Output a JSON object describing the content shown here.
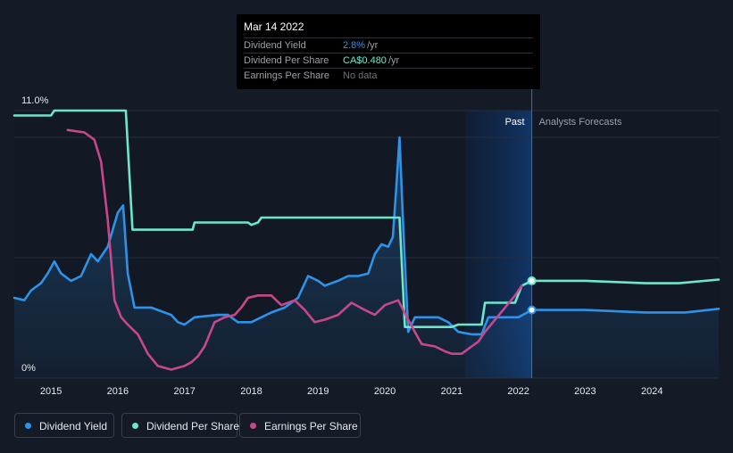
{
  "tooltip": {
    "date": "Mar 14 2022",
    "rows": [
      {
        "label": "Dividend Yield",
        "value": "2.8%",
        "unit": "/yr",
        "color": "#2e93e8"
      },
      {
        "label": "Dividend Per Share",
        "value": "CA$0.480",
        "unit": "/yr",
        "color": "#6ee6cc"
      },
      {
        "label": "Earnings Per Share",
        "value": "No data",
        "unit": "",
        "color": "#6b7079"
      }
    ]
  },
  "legend": [
    {
      "label": "Dividend Yield",
      "color": "#2e93e8"
    },
    {
      "label": "Dividend Per Share",
      "color": "#6ee6cc"
    },
    {
      "label": "Earnings Per Share",
      "color": "#c8478a"
    }
  ],
  "chart_data": {
    "type": "line",
    "y_axis_labels": [
      "11.0%",
      "0%"
    ],
    "ylim": [
      0,
      11.0
    ],
    "xlim": [
      2014.45,
      2025.0
    ],
    "x_ticks": [
      "2015",
      "2016",
      "2017",
      "2018",
      "2019",
      "2020",
      "2021",
      "2022",
      "2023",
      "2024"
    ],
    "region_labels": {
      "past": "Past",
      "forecast": "Analysts Forecasts"
    },
    "past_band": [
      2021.2,
      2022.2
    ],
    "today": 2022.2,
    "grid": true,
    "legend_position": "bottom",
    "series": [
      {
        "name": "Dividend Yield",
        "color": "#2e93e8",
        "fill": true,
        "points": [
          [
            2014.45,
            3.3
          ],
          [
            2014.6,
            3.2
          ],
          [
            2014.7,
            3.6
          ],
          [
            2014.85,
            3.9
          ],
          [
            2014.95,
            4.3
          ],
          [
            2015.05,
            4.8
          ],
          [
            2015.15,
            4.3
          ],
          [
            2015.3,
            4.0
          ],
          [
            2015.45,
            4.2
          ],
          [
            2015.6,
            5.1
          ],
          [
            2015.7,
            4.8
          ],
          [
            2015.85,
            5.4
          ],
          [
            2016.0,
            6.8
          ],
          [
            2016.08,
            7.1
          ],
          [
            2016.15,
            4.3
          ],
          [
            2016.25,
            2.9
          ],
          [
            2016.5,
            2.9
          ],
          [
            2016.6,
            2.8
          ],
          [
            2016.8,
            2.6
          ],
          [
            2016.9,
            2.3
          ],
          [
            2017.0,
            2.2
          ],
          [
            2017.15,
            2.5
          ],
          [
            2017.5,
            2.6
          ],
          [
            2017.65,
            2.6
          ],
          [
            2017.8,
            2.3
          ],
          [
            2018.0,
            2.3
          ],
          [
            2018.15,
            2.5
          ],
          [
            2018.3,
            2.7
          ],
          [
            2018.5,
            2.9
          ],
          [
            2018.7,
            3.3
          ],
          [
            2018.85,
            4.2
          ],
          [
            2019.0,
            4.0
          ],
          [
            2019.1,
            3.8
          ],
          [
            2019.3,
            4.0
          ],
          [
            2019.45,
            4.2
          ],
          [
            2019.6,
            4.2
          ],
          [
            2019.75,
            4.3
          ],
          [
            2019.85,
            5.1
          ],
          [
            2019.95,
            5.5
          ],
          [
            2020.05,
            5.4
          ],
          [
            2020.12,
            5.8
          ],
          [
            2020.17,
            7.8
          ],
          [
            2020.22,
            9.9
          ],
          [
            2020.27,
            6.5
          ],
          [
            2020.35,
            1.9
          ],
          [
            2020.45,
            2.5
          ],
          [
            2020.6,
            2.5
          ],
          [
            2020.8,
            2.5
          ],
          [
            2020.95,
            2.3
          ],
          [
            2021.1,
            1.9
          ],
          [
            2021.3,
            1.8
          ],
          [
            2021.45,
            1.8
          ],
          [
            2021.55,
            2.5
          ],
          [
            2021.8,
            2.5
          ],
          [
            2022.0,
            2.5
          ],
          [
            2022.2,
            2.8
          ],
          [
            2023.0,
            2.8
          ],
          [
            2023.9,
            2.7
          ],
          [
            2024.5,
            2.7
          ],
          [
            2025.0,
            2.85
          ]
        ]
      },
      {
        "name": "Dividend Per Share",
        "color": "#6ee6cc",
        "fill": false,
        "points": [
          [
            2014.45,
            10.8
          ],
          [
            2015.0,
            10.8
          ],
          [
            2015.05,
            11.0
          ],
          [
            2016.12,
            11.0
          ],
          [
            2016.22,
            6.1
          ],
          [
            2017.12,
            6.1
          ],
          [
            2017.15,
            6.4
          ],
          [
            2017.95,
            6.4
          ],
          [
            2018.0,
            6.3
          ],
          [
            2018.1,
            6.4
          ],
          [
            2018.15,
            6.6
          ],
          [
            2020.22,
            6.6
          ],
          [
            2020.3,
            2.1
          ],
          [
            2021.0,
            2.1
          ],
          [
            2021.1,
            2.2
          ],
          [
            2021.45,
            2.2
          ],
          [
            2021.5,
            3.1
          ],
          [
            2021.95,
            3.1
          ],
          [
            2022.05,
            3.8
          ],
          [
            2022.2,
            4.0
          ],
          [
            2023.0,
            4.0
          ],
          [
            2023.9,
            3.9
          ],
          [
            2024.4,
            3.9
          ],
          [
            2025.0,
            4.05
          ]
        ]
      },
      {
        "name": "Earnings Per Share",
        "color": "#c8478a",
        "fill": false,
        "points": [
          [
            2015.25,
            10.2
          ],
          [
            2015.5,
            10.1
          ],
          [
            2015.65,
            9.8
          ],
          [
            2015.75,
            8.9
          ],
          [
            2015.85,
            6.5
          ],
          [
            2015.95,
            3.2
          ],
          [
            2016.05,
            2.5
          ],
          [
            2016.15,
            2.2
          ],
          [
            2016.3,
            1.8
          ],
          [
            2016.45,
            1.0
          ],
          [
            2016.6,
            0.5
          ],
          [
            2016.8,
            0.35
          ],
          [
            2017.0,
            0.5
          ],
          [
            2017.1,
            0.65
          ],
          [
            2017.2,
            0.9
          ],
          [
            2017.3,
            1.3
          ],
          [
            2017.45,
            2.3
          ],
          [
            2017.6,
            2.5
          ],
          [
            2017.75,
            2.6
          ],
          [
            2017.85,
            2.9
          ],
          [
            2017.95,
            3.3
          ],
          [
            2018.1,
            3.4
          ],
          [
            2018.3,
            3.4
          ],
          [
            2018.45,
            3.0
          ],
          [
            2018.65,
            3.2
          ],
          [
            2018.8,
            2.8
          ],
          [
            2018.95,
            2.3
          ],
          [
            2019.1,
            2.4
          ],
          [
            2019.3,
            2.6
          ],
          [
            2019.5,
            3.1
          ],
          [
            2019.7,
            2.8
          ],
          [
            2019.85,
            2.6
          ],
          [
            2020.0,
            3.0
          ],
          [
            2020.2,
            3.2
          ],
          [
            2020.35,
            2.4
          ],
          [
            2020.45,
            1.9
          ],
          [
            2020.55,
            1.4
          ],
          [
            2020.75,
            1.3
          ],
          [
            2020.9,
            1.1
          ],
          [
            2021.0,
            1.0
          ],
          [
            2021.15,
            1.0
          ],
          [
            2021.3,
            1.3
          ],
          [
            2021.4,
            1.5
          ],
          [
            2021.5,
            1.9
          ],
          [
            2021.65,
            2.4
          ],
          [
            2021.8,
            2.9
          ],
          [
            2021.95,
            3.4
          ],
          [
            2022.05,
            3.8
          ]
        ]
      }
    ],
    "markers": [
      {
        "series": "Dividend Per Share",
        "x": 2022.2,
        "y": 4.0
      },
      {
        "series": "Dividend Yield",
        "x": 2022.2,
        "y": 2.8
      }
    ]
  }
}
